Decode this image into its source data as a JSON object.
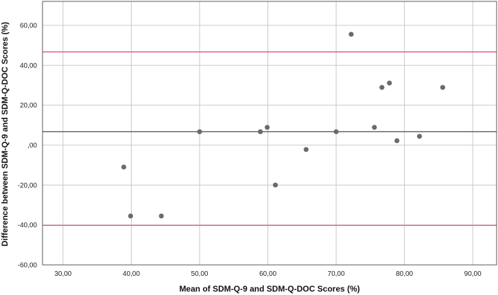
{
  "chart_data": {
    "type": "scatter",
    "title": "",
    "xlabel": "Mean of SDM-Q-9 and SDM-Q-DOC Scores (%)",
    "ylabel": "Difference between SDM-Q-9 and SDM-Q-DOC Scores (%)",
    "xlim": [
      27,
      93.5
    ],
    "ylim": [
      -60,
      72
    ],
    "x_ticks": [
      30,
      40,
      50,
      60,
      70,
      80,
      90
    ],
    "x_tick_labels": [
      "30,00",
      "40,00",
      "50,00",
      "60,00",
      "70,00",
      "80,00",
      "90,00"
    ],
    "y_ticks": [
      -60,
      -40,
      -20,
      0,
      20,
      40,
      60
    ],
    "y_tick_labels": [
      "-60,00",
      "-40,00",
      "-20,00",
      ",00",
      "20,00",
      "40,00",
      "60,00"
    ],
    "grid": true,
    "points": [
      {
        "x": 38.9,
        "y": -11.0
      },
      {
        "x": 39.9,
        "y": -35.5
      },
      {
        "x": 44.4,
        "y": -35.5
      },
      {
        "x": 50.0,
        "y": 6.7
      },
      {
        "x": 58.9,
        "y": 6.7
      },
      {
        "x": 59.9,
        "y": 8.9
      },
      {
        "x": 61.1,
        "y": -20.0
      },
      {
        "x": 65.6,
        "y": -2.2
      },
      {
        "x": 70.0,
        "y": 6.7
      },
      {
        "x": 72.2,
        "y": 55.5
      },
      {
        "x": 75.6,
        "y": 8.9
      },
      {
        "x": 76.7,
        "y": 28.9
      },
      {
        "x": 77.8,
        "y": 31.1
      },
      {
        "x": 78.9,
        "y": 2.2
      },
      {
        "x": 82.2,
        "y": 4.4
      },
      {
        "x": 85.6,
        "y": 28.9
      }
    ],
    "reference_lines": [
      {
        "kind": "upper-limit",
        "y": 46.7,
        "color": "#e0506e"
      },
      {
        "kind": "mean-difference",
        "y": 6.7,
        "color": "#555555"
      },
      {
        "kind": "lower-limit",
        "y": -40.2,
        "color": "#e0506e"
      }
    ],
    "point_color": "#6b6b6b",
    "grid_color": "#c8c8c8"
  }
}
